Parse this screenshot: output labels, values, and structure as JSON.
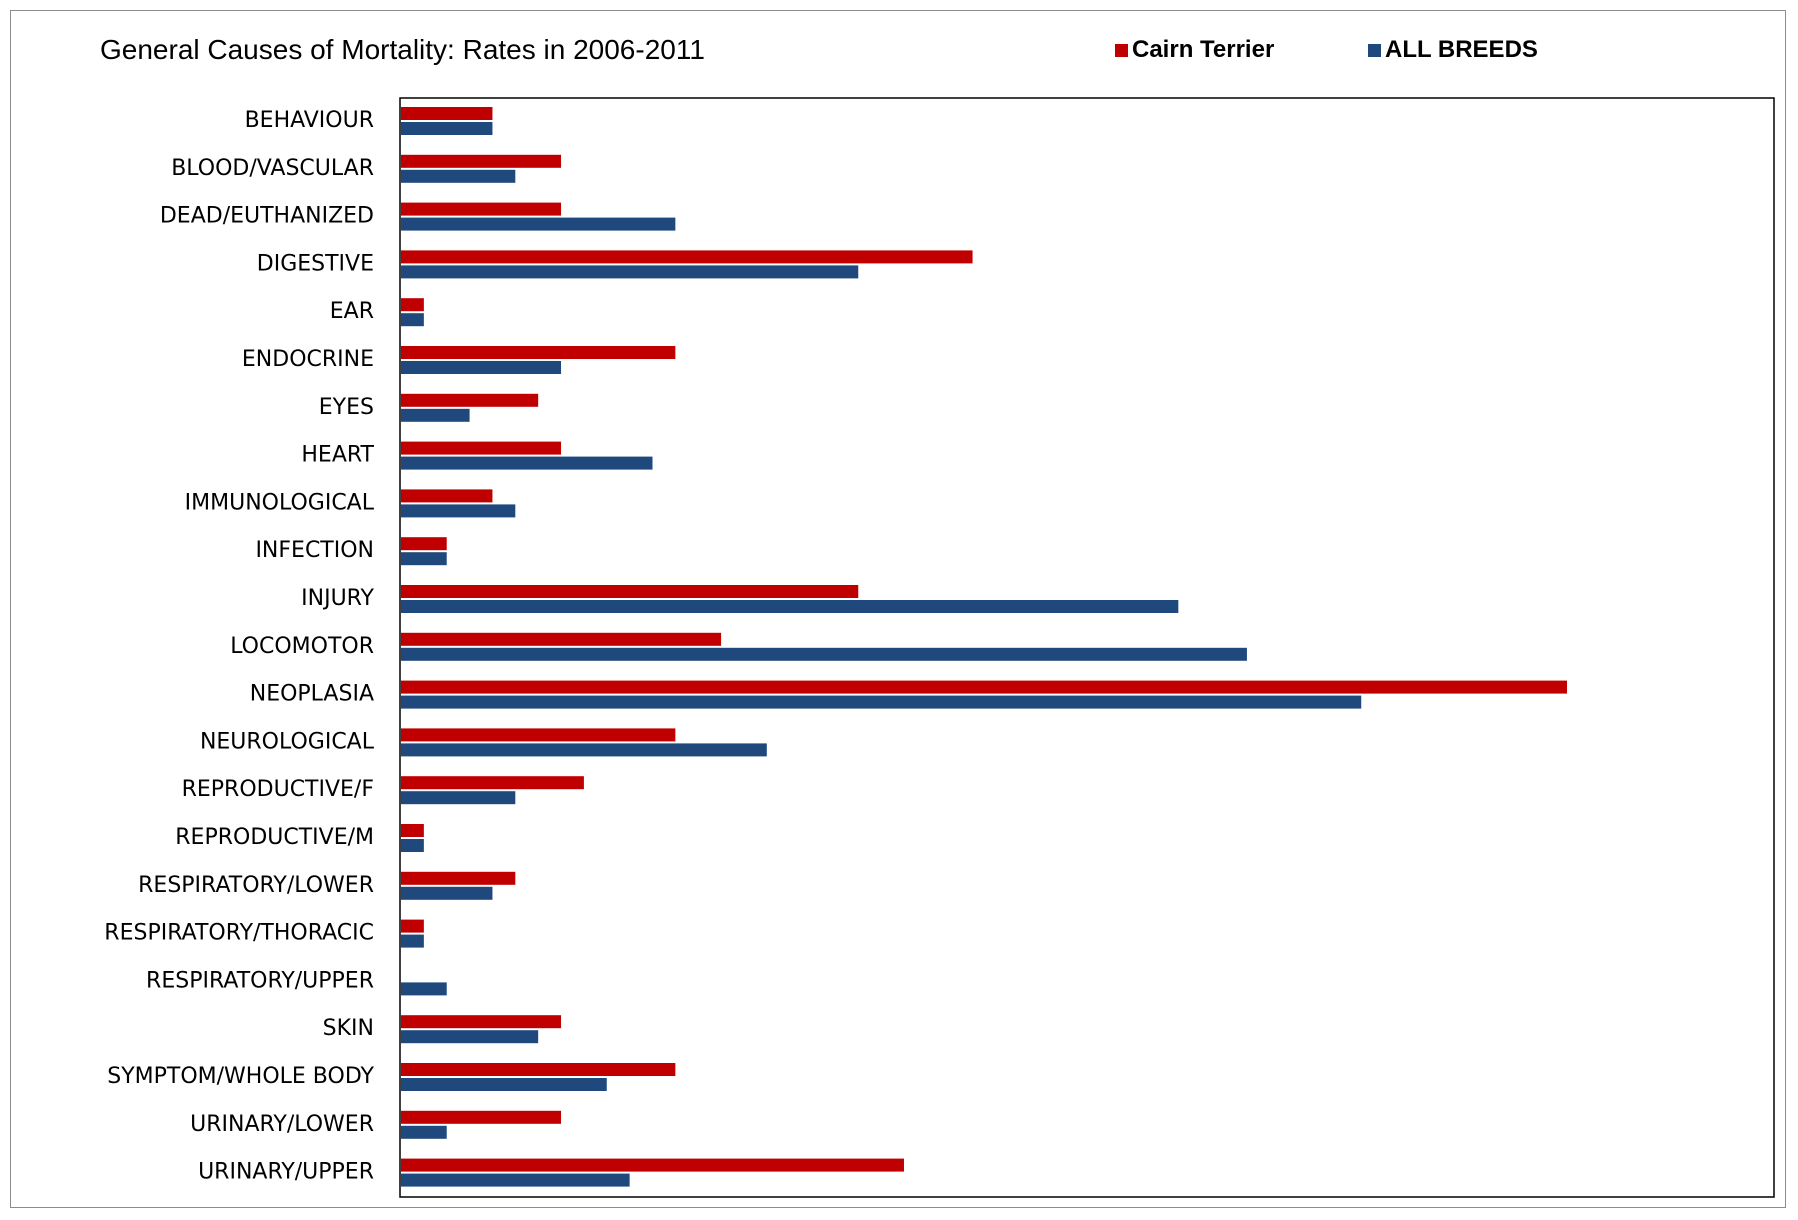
{
  "chart_data": {
    "type": "bar",
    "orientation": "horizontal",
    "title": "General Causes of Mortality: Rates in 2006-2011",
    "xlabel": "",
    "ylabel": "",
    "xlim": [
      0,
      60
    ],
    "grid": false,
    "legend_position": "top-right",
    "categories": [
      "BEHAVIOUR",
      "BLOOD/VASCULAR",
      "DEAD/EUTHANIZED",
      "DIGESTIVE",
      "EAR",
      "ENDOCRINE",
      "EYES",
      "HEART",
      "IMMUNOLOGICAL",
      "INFECTION",
      "INJURY",
      "LOCOMOTOR",
      "NEOPLASIA",
      "NEUROLOGICAL",
      "REPRODUCTIVE/F",
      "REPRODUCTIVE/M",
      "RESPIRATORY/LOWER",
      "RESPIRATORY/THORACIC",
      "RESPIRATORY/UPPER",
      "SKIN",
      "SYMPTOM/WHOLE BODY",
      "URINARY/LOWER",
      "URINARY/UPPER"
    ],
    "series": [
      {
        "name": "Cairn Terrier",
        "color": "#c00000",
        "values": [
          4,
          7,
          7,
          25,
          1,
          12,
          6,
          7,
          4,
          2,
          20,
          14,
          51,
          12,
          8,
          1,
          5,
          1,
          0,
          7,
          12,
          7,
          22
        ]
      },
      {
        "name": "ALL BREEDS",
        "color": "#1f497d",
        "values": [
          4,
          5,
          12,
          20,
          1,
          7,
          3,
          11,
          5,
          2,
          34,
          37,
          42,
          16,
          5,
          1,
          4,
          1,
          2,
          6,
          9,
          2,
          10
        ]
      }
    ]
  }
}
